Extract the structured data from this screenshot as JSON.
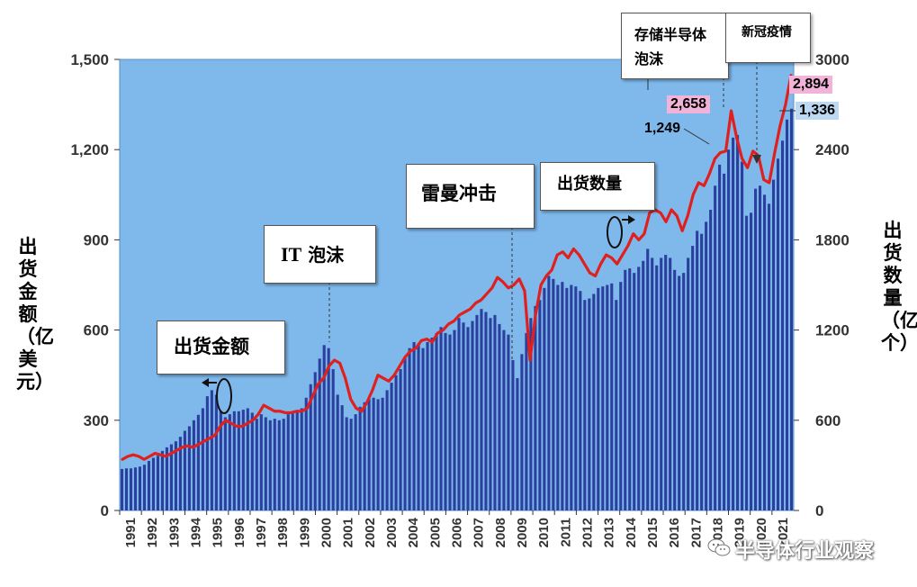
{
  "chart_data": {
    "type": "bar",
    "ylabel": "出货金额（亿美元）",
    "y2label": "出货数量（亿个）",
    "ylim": [
      0,
      1500
    ],
    "y2lim": [
      0,
      3000
    ],
    "yticks": [
      "0",
      "300",
      "600",
      "900",
      "1,200",
      "1,500"
    ],
    "y2ticks": [
      "0",
      "600",
      "1200",
      "1800",
      "2400",
      "3000"
    ],
    "year_labels": [
      "1991",
      "1992",
      "1993",
      "1994",
      "1995",
      "1996",
      "1997",
      "1998",
      "1999",
      "2000",
      "2001",
      "2002",
      "2003",
      "2004",
      "2005",
      "2006",
      "2007",
      "2008",
      "2009",
      "2010",
      "2011",
      "2012",
      "2013",
      "2014",
      "2015",
      "2016",
      "2017",
      "2018",
      "2019",
      "2020",
      "2021"
    ],
    "series": [
      {
        "name": "出货金额",
        "axis": "left",
        "style": "bars",
        "values": [
          138,
          140,
          140,
          143,
          146,
          152,
          165,
          175,
          182,
          198,
          210,
          220,
          230,
          245,
          265,
          280,
          300,
          318,
          340,
          380,
          400,
          385,
          330,
          310,
          320,
          330,
          330,
          335,
          340,
          325,
          305,
          320,
          310,
          300,
          305,
          300,
          305,
          320,
          325,
          330,
          340,
          375,
          420,
          460,
          505,
          550,
          540,
          470,
          385,
          350,
          310,
          305,
          320,
          345,
          360,
          370,
          375,
          370,
          375,
          400,
          425,
          450,
          470,
          510,
          540,
          560,
          555,
          540,
          560,
          575,
          590,
          610,
          590,
          585,
          600,
          640,
          625,
          610,
          630,
          650,
          670,
          660,
          640,
          650,
          620,
          600,
          585,
          500,
          440,
          520,
          590,
          640,
          680,
          700,
          740,
          780,
          770,
          750,
          760,
          740,
          750,
          745,
          730,
          700,
          705,
          720,
          740,
          745,
          750,
          755,
          700,
          760,
          800,
          805,
          790,
          810,
          830,
          870,
          840,
          815,
          840,
          850,
          840,
          800,
          780,
          790,
          840,
          880,
          930,
          920,
          960,
          1000,
          1080,
          1150,
          1120,
          1200,
          1240,
          1249,
          1160,
          980,
          990,
          1070,
          1080,
          1050,
          1020,
          1100,
          1170,
          1230,
          1300,
          1336
        ]
      },
      {
        "name": "出货数量",
        "axis": "right",
        "style": "line",
        "values": [
          340,
          360,
          370,
          360,
          340,
          360,
          380,
          370,
          360,
          380,
          400,
          420,
          430,
          420,
          440,
          460,
          480,
          500,
          560,
          600,
          580,
          560,
          560,
          580,
          600,
          640,
          700,
          680,
          660,
          660,
          650,
          650,
          660,
          660,
          680,
          760,
          840,
          880,
          960,
          1000,
          980,
          880,
          740,
          680,
          660,
          720,
          800,
          900,
          880,
          860,
          900,
          960,
          1020,
          1060,
          1080,
          1130,
          1140,
          1120,
          1180,
          1200,
          1240,
          1260,
          1300,
          1320,
          1340,
          1380,
          1400,
          1440,
          1480,
          1550,
          1520,
          1480,
          1500,
          1540,
          1460,
          1000,
          1300,
          1500,
          1560,
          1600,
          1700,
          1720,
          1680,
          1740,
          1700,
          1640,
          1580,
          1560,
          1640,
          1700,
          1680,
          1640,
          1700,
          1760,
          1840,
          1800,
          1840,
          1980,
          2000,
          1980,
          1920,
          2000,
          1960,
          1860,
          1960,
          2100,
          2180,
          2160,
          2240,
          2340,
          2380,
          2390,
          2658,
          2480,
          2340,
          2280,
          2390,
          2360,
          2200,
          2180,
          2380,
          2560,
          2700,
          2894
        ]
      }
    ],
    "annotations": [
      {
        "text": "出货金额",
        "type": "callout"
      },
      {
        "text": "IT 泡沫",
        "type": "callout"
      },
      {
        "text": "雷曼冲击",
        "type": "callout"
      },
      {
        "text": "出货数量",
        "type": "callout"
      },
      {
        "text": "存储半导体泡沫",
        "type": "callout"
      },
      {
        "text": "新冠疫情",
        "type": "callout"
      }
    ],
    "data_labels": [
      {
        "text": "2,658",
        "series": "出货数量"
      },
      {
        "text": "1,249",
        "series": "出货金额"
      },
      {
        "text": "2,894",
        "series": "出货数量"
      },
      {
        "text": "1,336",
        "series": "出货金额"
      }
    ],
    "grid": false,
    "legend": "none",
    "colors": {
      "plot_bg": "#7fb9ec",
      "bar": "#2b3f9e",
      "line": "#e0201f",
      "badge_pink": "#f2b3d9",
      "badge_blue": "#bcd8f2"
    }
  },
  "callouts": {
    "amount": "出货金额",
    "it_bubble_latin": "IT",
    "it_bubble_cjk": "泡沫",
    "lehman": "雷曼冲击",
    "quantity": "出货数量",
    "memory_line1": "存储半导体",
    "memory_line2": "泡沫",
    "covid": "新冠疫情"
  },
  "watermark": "半导体行业观察"
}
